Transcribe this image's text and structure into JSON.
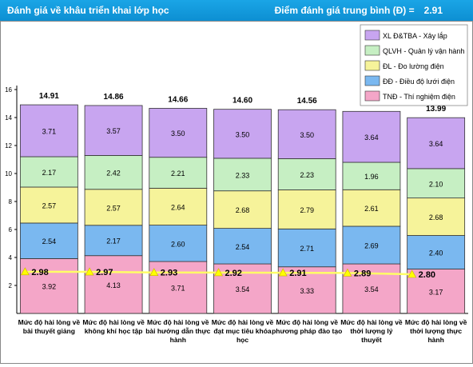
{
  "header": {
    "title": "Đánh giá về khâu triển khai lớp học",
    "score_label": "Điểm đánh giá trung bình (Đ) =",
    "score_value": "2.91"
  },
  "colors": {
    "header_bg": "#1aa5e6",
    "trend_line": "#ffff66",
    "trend_marker": "#ffff00"
  },
  "chart_data": {
    "type": "bar",
    "stacked": true,
    "categories": [
      "Mức độ hài lòng về bài thuyết giảng",
      "Mức độ hài lòng về không khí học tập",
      "Mức độ hài lòng về bài hướng dẫn thực hành",
      "Mức độ hài lòng về đạt mục tiêu khóa học",
      "Mức độ hài lòng về phương pháp đào tạo",
      "Mức độ hài lòng về thời lượng lý thuyết",
      "Mức độ hài lòng về thời lượng thực hành"
    ],
    "series": [
      {
        "name": "TNĐ - Thí nghiệm điện",
        "color": "#f4a6c8",
        "values": [
          3.92,
          4.13,
          3.71,
          3.54,
          3.33,
          3.54,
          3.17
        ]
      },
      {
        "name": "ĐĐ - Điều độ lưới điện",
        "color": "#7ab8f0",
        "values": [
          2.54,
          2.17,
          2.6,
          2.54,
          2.71,
          2.69,
          2.4
        ]
      },
      {
        "name": "ĐL - Đo lường điện",
        "color": "#f6f39a",
        "values": [
          2.57,
          2.57,
          2.64,
          2.68,
          2.79,
          2.61,
          2.68
        ]
      },
      {
        "name": "QLVH - Quản lý vận hành",
        "color": "#c6efc3",
        "values": [
          2.17,
          2.42,
          2.21,
          2.33,
          2.23,
          1.96,
          2.1
        ]
      },
      {
        "name": "XL Đ&TBA - Xây lắp",
        "color": "#c8a5f0",
        "values": [
          3.71,
          3.57,
          3.5,
          3.5,
          3.5,
          3.64,
          3.64
        ]
      }
    ],
    "totals": [
      "14.91",
      "14.86",
      "14.66",
      "14.60",
      "14.56",
      "14.44",
      "13.99"
    ],
    "averages": [
      "2.98",
      "2.97",
      "2.93",
      "2.92",
      "2.91",
      "2.89",
      "2.80"
    ],
    "average_values": [
      2.98,
      2.97,
      2.93,
      2.92,
      2.91,
      2.89,
      2.8
    ],
    "y_ticks": [
      2,
      4,
      6,
      8,
      10,
      12,
      14,
      16
    ],
    "ylim": [
      0,
      16
    ],
    "grid": false,
    "legend_position": "top-right"
  }
}
